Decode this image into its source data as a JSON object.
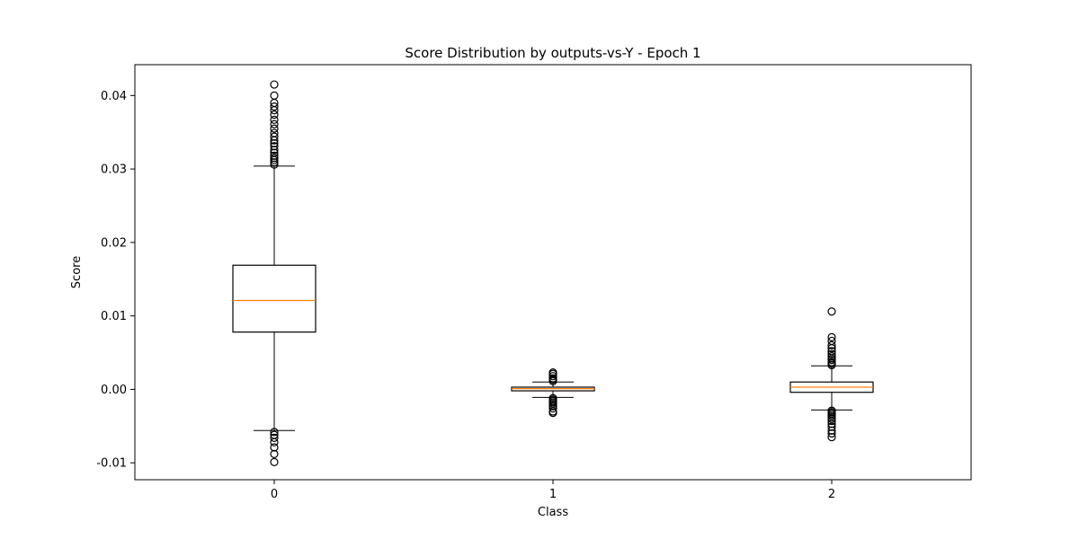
{
  "chart_data": {
    "type": "box",
    "title": "Score Distribution by outputs-vs-Y - Epoch 1",
    "xlabel": "Class",
    "ylabel": "Score",
    "ylim": [
      -0.0123,
      0.0442
    ],
    "yticks": [
      -0.01,
      0.0,
      0.01,
      0.02,
      0.03,
      0.04
    ],
    "ytick_labels": [
      "-0.01",
      "0.00",
      "0.01",
      "0.02",
      "0.03",
      "0.04"
    ],
    "grid": false,
    "colors": {
      "box": "#000000",
      "median": "#ff7f0e",
      "frame": "#000000"
    },
    "categories": [
      "0",
      "1",
      "2"
    ],
    "boxes": [
      {
        "label": "0",
        "whisker_low": -0.0056,
        "q1": 0.0078,
        "median": 0.0121,
        "q3": 0.0169,
        "whisker_high": 0.0304,
        "outliers": [
          0.0306,
          0.0309,
          0.0312,
          0.0315,
          0.0318,
          0.0322,
          0.0326,
          0.0331,
          0.0335,
          0.0339,
          0.0344,
          0.0349,
          0.0355,
          0.0361,
          0.0367,
          0.0374,
          0.038,
          0.0385,
          0.039,
          0.04,
          0.0415,
          -0.0058,
          -0.0062,
          -0.0066,
          -0.0072,
          -0.0079,
          -0.0088,
          -0.0099
        ]
      },
      {
        "label": "1",
        "whisker_low": -0.0011,
        "q1": -0.0002,
        "median": 0.0001,
        "q3": 0.0003,
        "whisker_high": 0.001,
        "outliers": [
          0.0011,
          0.0013,
          0.0015,
          0.0018,
          0.0021,
          0.0023,
          -0.0012,
          -0.0014,
          -0.0016,
          -0.0018,
          -0.002,
          -0.0023,
          -0.0026,
          -0.003,
          -0.0032
        ]
      },
      {
        "label": "2",
        "whisker_low": -0.0028,
        "q1": -0.0004,
        "median": 0.0003,
        "q3": 0.001,
        "whisker_high": 0.0032,
        "outliers": [
          0.0033,
          0.0035,
          0.0037,
          0.004,
          0.0042,
          0.0045,
          0.0048,
          0.0052,
          0.0056,
          0.006,
          0.0066,
          0.0071,
          0.0106,
          -0.0029,
          -0.0031,
          -0.0033,
          -0.0035,
          -0.0037,
          -0.004,
          -0.0043,
          -0.0047,
          -0.0051,
          -0.0056,
          -0.006,
          -0.0065
        ]
      }
    ]
  }
}
